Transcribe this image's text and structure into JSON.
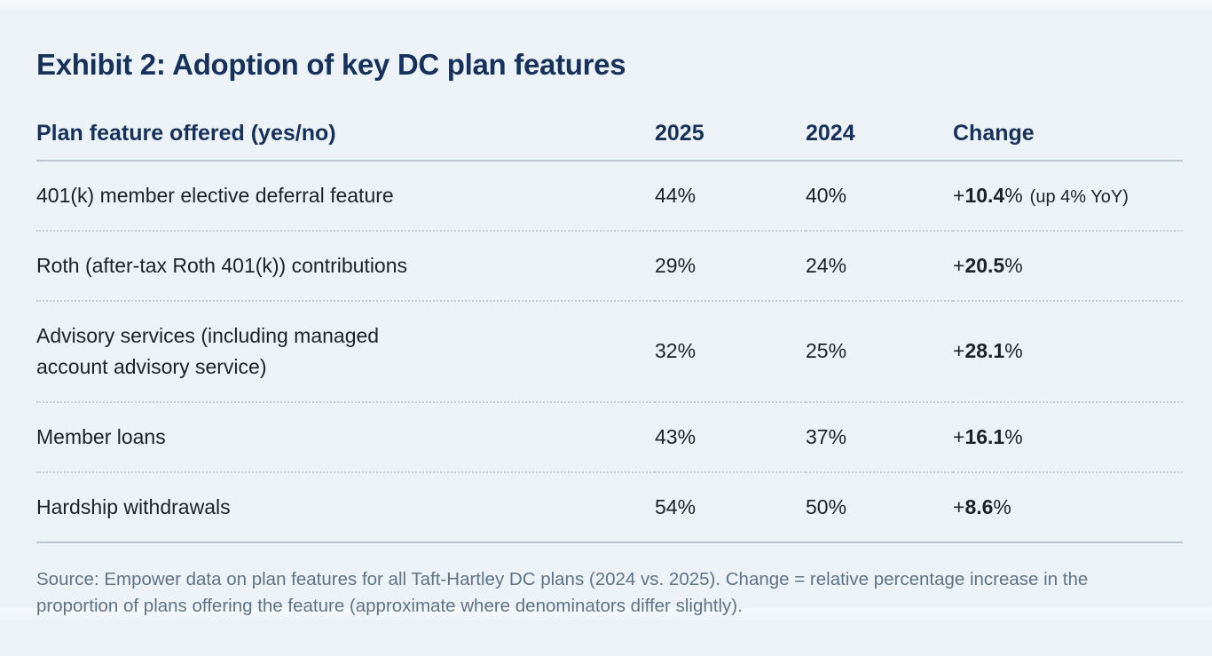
{
  "title": "Exhibit 2: Adoption of key DC plan features",
  "table": {
    "columns": [
      "Plan feature offered (yes/no)",
      "2025",
      "2024",
      "Change"
    ],
    "rows": [
      {
        "feature": "401(k) member elective deferral feature",
        "v2025": "44%",
        "v2024": "40%",
        "change": {
          "prefix": "+",
          "value": "10.4",
          "suffix": "%",
          "note": "(up 4% YoY)"
        }
      },
      {
        "feature": "Roth (after-tax Roth 401(k)) contributions",
        "v2025": "29%",
        "v2024": "24%",
        "change": {
          "prefix": "+",
          "value": "20.5",
          "suffix": "%",
          "note": ""
        }
      },
      {
        "feature": "Advisory services (including managed account advisory service)",
        "v2025": "32%",
        "v2024": "25%",
        "change": {
          "prefix": "+",
          "value": "28.1",
          "suffix": "%",
          "note": ""
        }
      },
      {
        "feature": "Member loans",
        "v2025": "43%",
        "v2024": "37%",
        "change": {
          "prefix": "+",
          "value": "16.1",
          "suffix": "%",
          "note": ""
        }
      },
      {
        "feature": "Hardship withdrawals",
        "v2025": "54%",
        "v2024": "50%",
        "change": {
          "prefix": "+",
          "value": "8.6",
          "suffix": "%",
          "note": ""
        }
      }
    ]
  },
  "source": "Source: Empower data on plan features for all Taft-Hartley DC plans (2024 vs. 2025). Change = relative percentage increase in the proportion of plans offering the feature (approximate where denominators differ slightly).",
  "colors": {
    "title_navy": "#16325c",
    "body_text": "#1d2228",
    "source_gray": "#5e7386",
    "background": "#edf2f7",
    "rule_solid": "#bcc8d3",
    "rule_dotted": "#c7ced7"
  }
}
